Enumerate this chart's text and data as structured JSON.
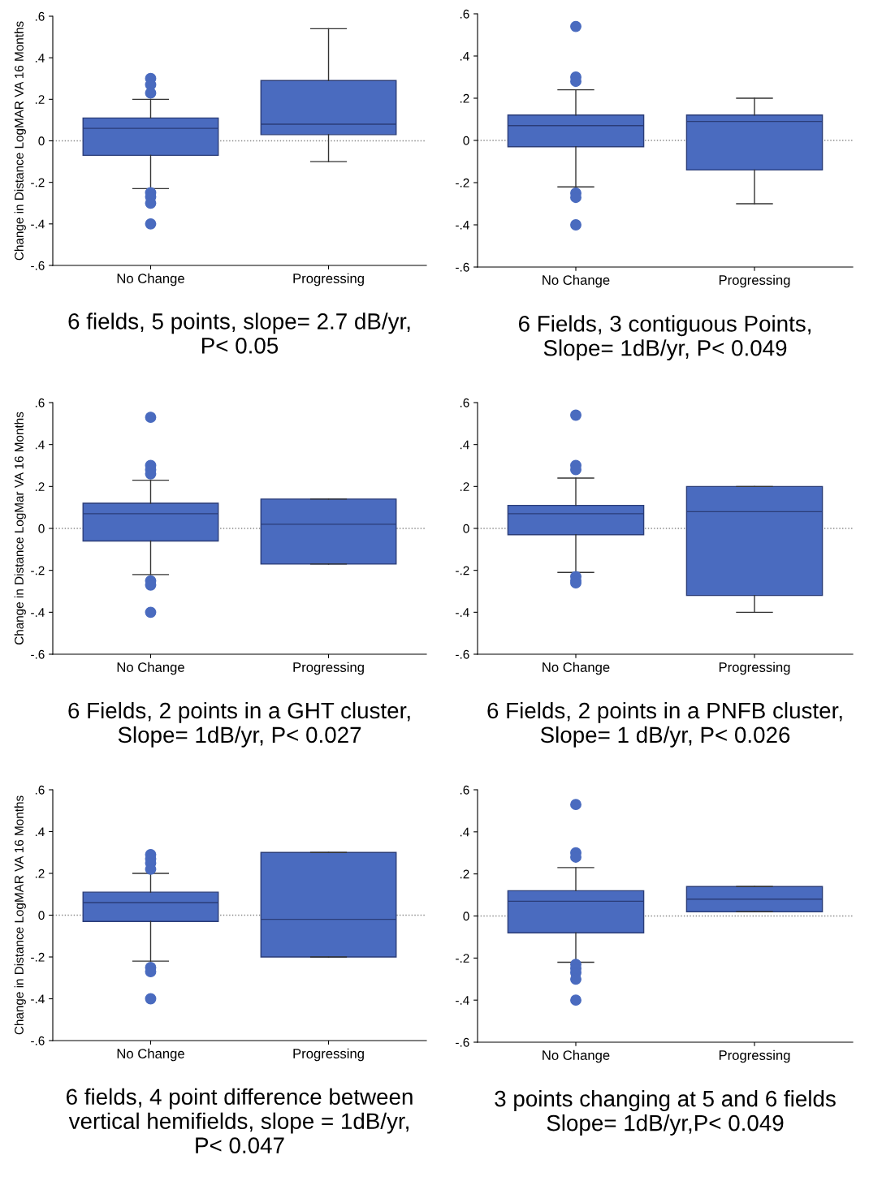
{
  "chart_data": [
    {
      "type": "box",
      "title": "6 fields, 5 points, slope= 2.7 dB/yr,\nP< 0.05",
      "ylabel": "Change in Distance LogMAR VA 16 Months",
      "categories": [
        "No Change",
        "Progressing"
      ],
      "color": "#4a6bbf",
      "ylim": [
        -0.6,
        0.6
      ],
      "yticks": [
        {
          "value": 0.6,
          "label": ".6"
        },
        {
          "value": 0.4,
          "label": ".4"
        },
        {
          "value": 0.2,
          "label": ".2"
        },
        0,
        {
          "value": -0.2,
          "label": "-.2"
        },
        {
          "value": -0.4,
          "label": "-.4"
        },
        {
          "value": -0.6,
          "label": "-.6"
        }
      ],
      "grid": false,
      "ref_lines": [
        {
          "axis": "y",
          "value": 0,
          "line_style": "dotted",
          "color": "#888888"
        }
      ],
      "boxes": [
        {
          "low": -0.23,
          "q1": -0.07,
          "median": 0.06,
          "q3": 0.11,
          "high": 0.2,
          "outliers": [
            0.3,
            0.27,
            0.23,
            -0.25,
            -0.27,
            -0.3,
            -0.4
          ]
        },
        {
          "low": -0.1,
          "q1": 0.03,
          "median": 0.08,
          "q3": 0.29,
          "high": 0.54
        }
      ]
    },
    {
      "type": "box",
      "title": "6 Fields, 3 contiguous Points,\nSlope= 1dB/yr, P< 0.049",
      "categories": [
        "No Change",
        "Progressing"
      ],
      "color": "#4a6bbf",
      "ylim": [
        -0.6,
        0.6
      ],
      "yticks": [
        {
          "value": 0.6,
          "label": ".6"
        },
        {
          "value": 0.4,
          "label": ".4"
        },
        {
          "value": 0.2,
          "label": ".2"
        },
        0,
        {
          "value": -0.2,
          "label": "-.2"
        },
        {
          "value": -0.4,
          "label": "-.4"
        },
        {
          "value": -0.6,
          "label": "-.6"
        }
      ],
      "grid": false,
      "ref_lines": [
        {
          "axis": "y",
          "value": 0,
          "line_style": "dotted",
          "color": "#888888"
        }
      ],
      "boxes": [
        {
          "low": -0.22,
          "q1": -0.03,
          "median": 0.07,
          "q3": 0.12,
          "high": 0.24,
          "outliers": [
            0.54,
            0.3,
            0.28,
            -0.25,
            -0.27,
            -0.4
          ]
        },
        {
          "low": -0.3,
          "q1": -0.14,
          "median": 0.09,
          "q3": 0.12,
          "high": 0.2
        }
      ]
    },
    {
      "type": "box",
      "title": "6 Fields, 2 points in a GHT cluster,\nSlope= 1dB/yr, P< 0.027",
      "ylabel": "Change in Distance LogMar VA 16 Months",
      "categories": [
        "No Change",
        "Progressing"
      ],
      "color": "#4a6bbf",
      "ylim": [
        -0.6,
        0.6
      ],
      "yticks": [
        {
          "value": 0.6,
          "label": ".6"
        },
        {
          "value": 0.4,
          "label": ".4"
        },
        {
          "value": 0.2,
          "label": ".2"
        },
        0,
        {
          "value": -0.2,
          "label": "-.2"
        },
        {
          "value": -0.4,
          "label": "-.4"
        },
        {
          "value": -0.6,
          "label": "-.6"
        }
      ],
      "grid": false,
      "ref_lines": [
        {
          "axis": "y",
          "value": 0,
          "line_style": "dotted",
          "color": "#888888"
        }
      ],
      "boxes": [
        {
          "low": -0.22,
          "q1": -0.06,
          "median": 0.07,
          "q3": 0.12,
          "high": 0.23,
          "outliers": [
            0.53,
            0.3,
            0.28,
            0.26,
            -0.25,
            -0.27,
            -0.4
          ]
        },
        {
          "low": -0.17,
          "q1": -0.17,
          "median": 0.02,
          "q3": 0.14,
          "high": 0.14
        }
      ]
    },
    {
      "type": "box",
      "title": "6 Fields, 2 points in a PNFB cluster,\nSlope= 1 dB/yr, P< 0.026",
      "categories": [
        "No Change",
        "Progressing"
      ],
      "color": "#4a6bbf",
      "ylim": [
        -0.6,
        0.6
      ],
      "yticks": [
        {
          "value": 0.6,
          "label": ".6"
        },
        {
          "value": 0.4,
          "label": ".4"
        },
        {
          "value": 0.2,
          "label": ".2"
        },
        0,
        {
          "value": -0.2,
          "label": "-.2"
        },
        {
          "value": -0.4,
          "label": "-.4"
        },
        {
          "value": -0.6,
          "label": "-.6"
        }
      ],
      "grid": false,
      "ref_lines": [
        {
          "axis": "y",
          "value": 0,
          "line_style": "dotted",
          "color": "#888888"
        }
      ],
      "boxes": [
        {
          "low": -0.21,
          "q1": -0.03,
          "median": 0.07,
          "q3": 0.11,
          "high": 0.24,
          "outliers": [
            0.54,
            0.3,
            0.28,
            -0.23,
            -0.25,
            -0.26
          ]
        },
        {
          "low": -0.4,
          "q1": -0.32,
          "median": 0.08,
          "q3": 0.2,
          "high": 0.2
        }
      ]
    },
    {
      "type": "box",
      "title": "6 fields, 4 point difference between\nvertical hemifields, slope = 1dB/yr,\nP< 0.047",
      "ylabel": "Change in Distance LogMAR VA 16 Months",
      "categories": [
        "No Change",
        "Progressing"
      ],
      "color": "#4a6bbf",
      "ylim": [
        -0.6,
        0.6
      ],
      "yticks": [
        {
          "value": 0.6,
          "label": ".6"
        },
        {
          "value": 0.4,
          "label": ".4"
        },
        {
          "value": 0.2,
          "label": ".2"
        },
        0,
        {
          "value": -0.2,
          "label": "-.2"
        },
        {
          "value": -0.4,
          "label": "-.4"
        },
        {
          "value": -0.6,
          "label": "-.6"
        }
      ],
      "grid": false,
      "ref_lines": [
        {
          "axis": "y",
          "value": 0,
          "line_style": "dotted",
          "color": "#888888"
        }
      ],
      "boxes": [
        {
          "low": -0.22,
          "q1": -0.03,
          "median": 0.06,
          "q3": 0.11,
          "high": 0.2,
          "outliers": [
            0.29,
            0.27,
            0.25,
            0.22,
            -0.25,
            -0.27,
            -0.4
          ]
        },
        {
          "low": -0.2,
          "q1": -0.2,
          "median": -0.02,
          "q3": 0.3,
          "high": 0.3
        }
      ]
    },
    {
      "type": "box",
      "title": "3 points changing at 5 and 6 fields\nSlope= 1dB/yr,P< 0.049",
      "categories": [
        "No Change",
        "Progressing"
      ],
      "color": "#4a6bbf",
      "ylim": [
        -0.6,
        0.6
      ],
      "yticks": [
        {
          "value": 0.6,
          "label": ".6"
        },
        {
          "value": 0.4,
          "label": ".4"
        },
        {
          "value": 0.2,
          "label": ".2"
        },
        0,
        {
          "value": -0.2,
          "label": "-.2"
        },
        {
          "value": -0.4,
          "label": "-.4"
        },
        {
          "value": -0.6,
          "label": "-.6"
        }
      ],
      "grid": false,
      "ref_lines": [
        {
          "axis": "y",
          "value": 0,
          "line_style": "dotted",
          "color": "#888888"
        }
      ],
      "boxes": [
        {
          "low": -0.22,
          "q1": -0.08,
          "median": 0.07,
          "q3": 0.12,
          "high": 0.23,
          "outliers": [
            0.53,
            0.3,
            0.28,
            -0.23,
            -0.25,
            -0.27,
            -0.3,
            -0.4
          ]
        },
        {
          "low": 0.02,
          "q1": 0.02,
          "median": 0.08,
          "q3": 0.14,
          "high": 0.14
        }
      ]
    }
  ]
}
